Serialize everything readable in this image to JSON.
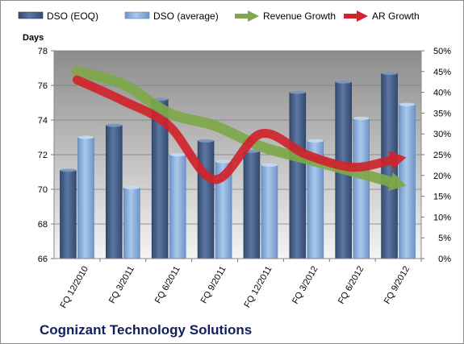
{
  "chart_data": {
    "type": "bar",
    "title": "Cognizant Technology Solutions",
    "ylabel": "Days",
    "ylim": [
      66,
      78
    ],
    "y_ticks": [
      "66",
      "68",
      "70",
      "72",
      "74",
      "76",
      "78"
    ],
    "y2lim": [
      0,
      50
    ],
    "y2_ticks": [
      "0%",
      "5%",
      "10%",
      "15%",
      "20%",
      "25%",
      "30%",
      "35%",
      "40%",
      "45%",
      "50%"
    ],
    "categories": [
      "FQ 12/2010",
      "FQ 3/2011",
      "FQ 6/2011",
      "FQ 9/2011",
      "FQ 12/2011",
      "FQ 3/2012",
      "FQ 6/2012",
      "FQ 9/2012"
    ],
    "series": [
      {
        "name": "DSO (EOQ)",
        "type": "bar",
        "axis": "left",
        "color": "#4a6590",
        "values": [
          71.1,
          73.7,
          75.2,
          72.8,
          72.2,
          75.6,
          76.2,
          76.7
        ]
      },
      {
        "name": "DSO (average)",
        "type": "bar",
        "axis": "left",
        "color": "#8eb4e0",
        "values": [
          73.0,
          70.1,
          72.0,
          71.6,
          71.4,
          72.8,
          74.1,
          74.9
        ]
      },
      {
        "name": "Revenue Growth",
        "type": "arrow",
        "axis": "right",
        "color": "#7ea84a",
        "values": [
          45,
          42,
          35,
          32,
          27,
          24,
          21,
          18
        ]
      },
      {
        "name": "AR Growth",
        "type": "arrow",
        "axis": "right",
        "color": "#d0232b",
        "values": [
          43,
          38,
          32,
          19,
          30,
          25,
          22,
          24
        ]
      }
    ],
    "grid": true,
    "legend_position": "top"
  }
}
